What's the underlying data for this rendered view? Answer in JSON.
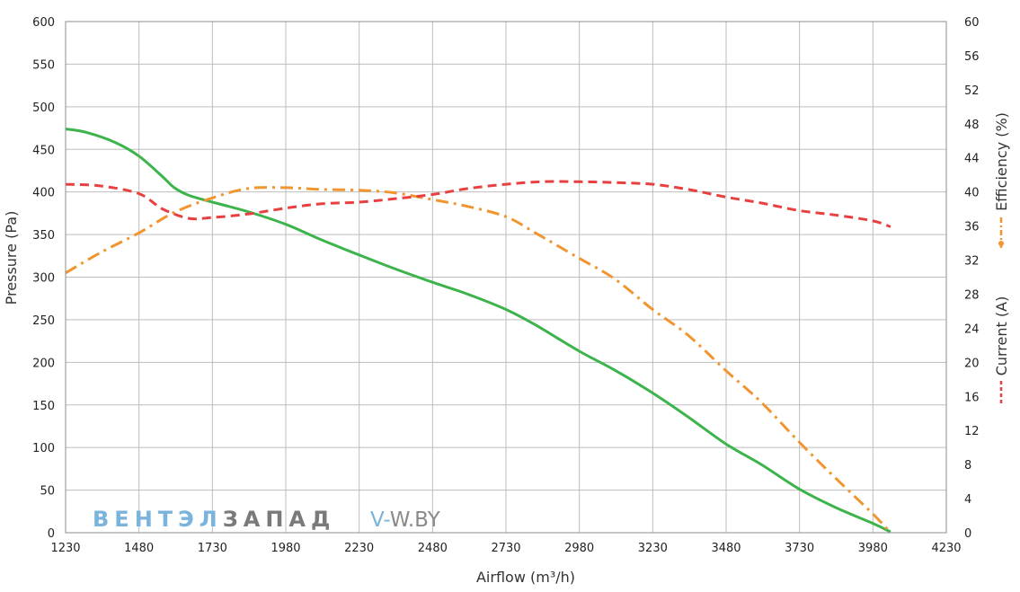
{
  "chart_data": {
    "type": "line",
    "xlabel": "Airflow (m³/h)",
    "ylabel": "Pressure (Pa)",
    "y2labels": [
      "Efficiency (%)",
      "Current (A)"
    ],
    "xlim": [
      1230,
      4230
    ],
    "ylim": [
      0,
      600
    ],
    "y2lim": [
      0,
      60
    ],
    "xticks": [
      1230,
      1480,
      1730,
      1980,
      2230,
      2480,
      2730,
      2980,
      3230,
      3480,
      3730,
      3980,
      4230
    ],
    "yticks": [
      0,
      50,
      100,
      150,
      200,
      250,
      300,
      350,
      400,
      450,
      500,
      550,
      600
    ],
    "y2ticks": [
      0,
      4,
      8,
      12,
      16,
      20,
      24,
      28,
      32,
      36,
      40,
      44,
      48,
      52,
      56,
      60
    ],
    "grid": true,
    "series": [
      {
        "axis": "left",
        "color": "#3cb44b",
        "style": "solid",
        "x": [
          1230,
          1300,
          1400,
          1480,
          1560,
          1600,
          1650,
          1730,
          1850,
          1980,
          2100,
          2230,
          2350,
          2480,
          2600,
          2730,
          2830,
          2980,
          3100,
          3230,
          3350,
          3480,
          3600,
          3730,
          3850,
          3980,
          4040
        ],
        "y": [
          474,
          470,
          458,
          442,
          418,
          405,
          396,
          388,
          377,
          362,
          344,
          326,
          310,
          294,
          280,
          262,
          244,
          213,
          191,
          164,
          136,
          104,
          80,
          51,
          30,
          11,
          1
        ]
      },
      {
        "axis": "right",
        "color": "#f0952f",
        "style": "dashdot",
        "x": [
          1230,
          1350,
          1480,
          1600,
          1730,
          1850,
          1980,
          2100,
          2230,
          2350,
          2480,
          2600,
          2730,
          2830,
          2980,
          3100,
          3230,
          3350,
          3480,
          3600,
          3730,
          3850,
          3980,
          4040
        ],
        "y": [
          30.5,
          32.9,
          35.2,
          37.6,
          39.3,
          40.4,
          40.5,
          40.3,
          40.2,
          39.9,
          39.1,
          38.3,
          37.1,
          35.2,
          32.2,
          29.8,
          26.2,
          23.2,
          19.0,
          15.3,
          10.6,
          6.5,
          2.2,
          0
        ]
      },
      {
        "axis": "right",
        "color": "#e84040",
        "style": "dashed",
        "x": [
          1230,
          1350,
          1480,
          1560,
          1650,
          1730,
          1850,
          1980,
          2100,
          2230,
          2350,
          2480,
          2600,
          2730,
          2850,
          2980,
          3100,
          3230,
          3350,
          3480,
          3600,
          3730,
          3850,
          3980,
          4040
        ],
        "y": [
          40.9,
          40.7,
          39.8,
          38.0,
          36.9,
          37.0,
          37.4,
          38.1,
          38.6,
          38.8,
          39.2,
          39.7,
          40.4,
          40.9,
          41.2,
          41.2,
          41.1,
          40.9,
          40.3,
          39.4,
          38.7,
          37.8,
          37.3,
          36.6,
          35.9
        ]
      }
    ]
  },
  "watermark": {
    "blue_part": "ВЕНТЭЛ",
    "gray_part": "ЗАПАД",
    "site_prefix": "V-",
    "site_rest": "W.BY",
    "blue_color": "#7ab3dc",
    "gray_color": "#7a7a7a"
  }
}
